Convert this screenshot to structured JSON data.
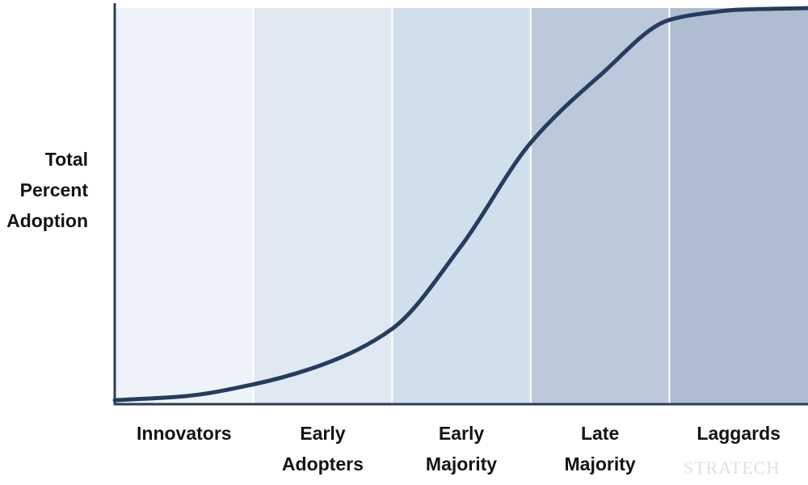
{
  "chart_data": {
    "type": "area",
    "ylabel": [
      "Total",
      "Percent",
      "Adoption"
    ],
    "xlabel": "",
    "categories": [
      {
        "lines": [
          "Innovators"
        ],
        "color": "#eef3fa"
      },
      {
        "lines": [
          "Early",
          "Adopters"
        ],
        "color": "#e0e8f2"
      },
      {
        "lines": [
          "Early",
          "Majority"
        ],
        "color": "#d0dfec"
      },
      {
        "lines": [
          "Late",
          "Majority"
        ],
        "color": "#bcc9da"
      },
      {
        "lines": [
          "Laggards"
        ],
        "color": "#aebdd0"
      }
    ],
    "ylim": [
      0,
      100
    ],
    "curve": {
      "x": [
        0,
        0.5,
        1,
        1.5,
        2,
        2.5,
        3,
        3.5,
        4,
        4.3,
        4.5,
        5
      ],
      "y": [
        1,
        2,
        5,
        10,
        19,
        40,
        66,
        83,
        97,
        98.9,
        99.6,
        100
      ]
    },
    "colors": {
      "curve": "#253d5e",
      "axis": "#2b3d55",
      "divider": "#ffffff"
    }
  },
  "watermark": "STRATECH"
}
